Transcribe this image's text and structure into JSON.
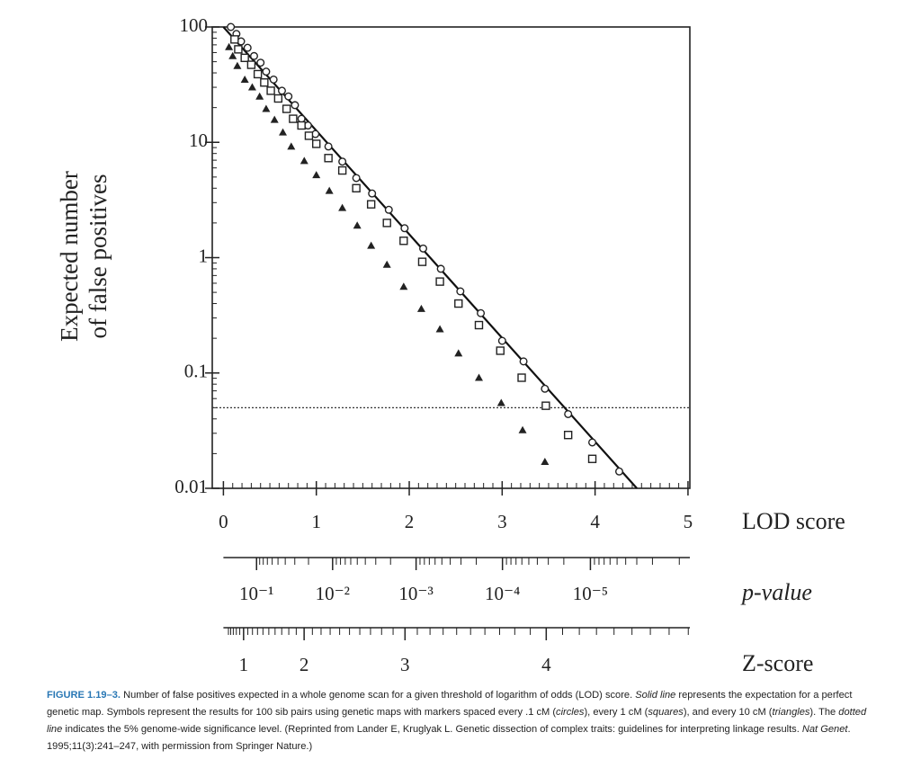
{
  "chart_data": {
    "type": "scatter",
    "xlabel": "LOD score",
    "ylabel": [
      "Expected number",
      "of false positives"
    ],
    "xlim": [
      -0.12,
      5.02
    ],
    "xticks": [
      0,
      1,
      2,
      3,
      4,
      5
    ],
    "xminorticks": [
      0.1,
      0.2,
      0.3,
      0.4,
      0.5,
      0.6,
      0.7,
      0.8,
      0.9,
      1.1,
      1.2,
      1.3,
      1.4,
      1.5,
      1.6,
      1.7,
      1.8,
      1.9,
      2.1,
      2.2,
      2.3,
      2.4,
      2.5,
      2.6,
      2.7,
      2.8,
      2.9,
      3.1,
      3.2,
      3.3,
      3.4,
      3.5,
      3.6,
      3.7,
      3.8,
      3.9,
      4.1,
      4.2,
      4.3,
      4.4,
      4.5,
      4.6,
      4.7,
      4.8,
      4.9
    ],
    "ylim": [
      0.01,
      100
    ],
    "ylog": true,
    "yticks": [
      100,
      10,
      1,
      0.1,
      0.01
    ],
    "yminorticks": [
      0.02,
      0.03,
      0.04,
      0.05,
      0.06,
      0.07,
      0.08,
      0.09,
      0.2,
      0.3,
      0.4,
      0.5,
      0.6,
      0.7,
      0.8,
      0.9,
      2,
      3,
      4,
      5,
      6,
      7,
      8,
      9,
      20,
      30,
      40,
      50,
      60,
      70,
      80,
      90
    ],
    "line": {
      "color": "#111111",
      "x": [
        0,
        4.45
      ],
      "values": [
        100,
        0.01
      ]
    },
    "reference_line": {
      "value": 0.05,
      "color": "#333333"
    },
    "series": [
      {
        "marker": "circle",
        "color": "#222222",
        "x": [
          0.08,
          0.14,
          0.19,
          0.26,
          0.33,
          0.4,
          0.46,
          0.54,
          0.63,
          0.7,
          0.77,
          0.84,
          0.91,
          0.99,
          1.13,
          1.28,
          1.43,
          1.6,
          1.78,
          1.95,
          2.15,
          2.34,
          2.55,
          2.77,
          3.0,
          3.23,
          3.46,
          3.71,
          3.97,
          4.26
        ],
        "values": [
          100,
          87,
          75,
          66,
          56,
          49,
          41,
          35,
          28,
          25,
          21,
          16,
          14,
          11.8,
          9.2,
          6.8,
          4.9,
          3.6,
          2.6,
          1.8,
          1.2,
          0.8,
          0.51,
          0.33,
          0.19,
          0.126,
          0.073,
          0.044,
          0.025,
          0.014
        ]
      },
      {
        "marker": "square",
        "color": "#222222",
        "x": [
          0.12,
          0.16,
          0.23,
          0.3,
          0.37,
          0.44,
          0.51,
          0.59,
          0.68,
          0.75,
          0.84,
          0.92,
          1.0,
          1.13,
          1.28,
          1.43,
          1.59,
          1.76,
          1.94,
          2.14,
          2.33,
          2.53,
          2.75,
          2.98,
          3.21,
          3.47,
          3.71,
          3.97
        ],
        "values": [
          78,
          64,
          54,
          47,
          39,
          33,
          28,
          24,
          19.5,
          16,
          14,
          11.4,
          9.7,
          7.3,
          5.7,
          4.0,
          2.9,
          2.0,
          1.4,
          0.92,
          0.62,
          0.4,
          0.26,
          0.156,
          0.091,
          0.052,
          0.029,
          0.018
        ]
      },
      {
        "marker": "triangle",
        "color": "#222222",
        "x": [
          0.06,
          0.1,
          0.15,
          0.23,
          0.31,
          0.39,
          0.46,
          0.55,
          0.64,
          0.73,
          0.87,
          1.0,
          1.14,
          1.28,
          1.44,
          1.59,
          1.76,
          1.94,
          2.13,
          2.33,
          2.53,
          2.75,
          2.99,
          3.22,
          3.46
        ],
        "values": [
          67,
          56,
          46,
          35,
          30,
          25,
          19.5,
          15.7,
          12.2,
          9.2,
          6.9,
          5.2,
          3.8,
          2.7,
          1.9,
          1.27,
          0.87,
          0.56,
          0.36,
          0.24,
          0.148,
          0.091,
          0.055,
          0.032,
          0.017
        ]
      }
    ],
    "p_axis": {
      "label": "p-value",
      "ticks": [
        {
          "value": 0.1,
          "label": "10⁻¹"
        },
        {
          "value": 0.01,
          "label": "10⁻²"
        },
        {
          "value": 0.001,
          "label": "10⁻³"
        },
        {
          "value": 0.0001,
          "label": "10⁻⁴"
        },
        {
          "value": 1e-05,
          "label": "10⁻⁵"
        }
      ],
      "minorticks": [
        0.09,
        0.08,
        0.07,
        0.06,
        0.05,
        0.04,
        0.03,
        0.02,
        0.009,
        0.008,
        0.007,
        0.006,
        0.005,
        0.004,
        0.003,
        0.002,
        0.0009,
        0.0008,
        0.0007,
        0.0006,
        0.0005,
        0.0004,
        0.0003,
        0.0002,
        9e-05,
        8e-05,
        7e-05,
        6e-05,
        5e-05,
        4e-05,
        3e-05,
        2e-05,
        9e-06,
        8e-06,
        7e-06,
        6e-06,
        5e-06,
        4e-06,
        3e-06,
        2e-06,
        1e-06
      ]
    },
    "z_axis": {
      "label": "Z-score",
      "ticks": [
        1,
        2,
        3,
        4
      ],
      "minorticks": [
        0.5,
        0.6,
        0.7,
        0.8,
        0.9,
        1.1,
        1.2,
        1.3,
        1.4,
        1.5,
        1.6,
        1.7,
        1.8,
        1.9,
        2.1,
        2.2,
        2.3,
        2.4,
        2.5,
        2.6,
        2.7,
        2.8,
        2.9,
        3.1,
        3.2,
        3.3,
        3.4,
        3.5,
        3.6,
        3.7,
        3.8,
        3.9,
        4.1,
        4.2,
        4.3,
        4.4,
        4.5,
        4.6,
        4.7,
        4.8
      ]
    }
  },
  "caption": {
    "label": "FIGURE 1.19–3.",
    "segments": [
      " Number of false positives expected in a whole genome scan for a given threshold of logarithm of odds (LOD) score. ",
      "Solid line",
      " represents the expectation for a perfect genetic map. Symbols represent the results for 100 sib pairs using genetic maps with markers spaced every .1 cM (",
      "circles",
      "), every 1 cM (",
      "squares",
      "), and every 10 cM (",
      "triangles",
      "). The ",
      "dotted line",
      " indicates the 5% genome-wide significance level. (Reprinted from Lander E, Kruglyak L. Genetic dissection of complex traits: guidelines for interpreting linkage results. ",
      "Nat Genet",
      ". 1995;11(3):241–247, with permission from Springer Nature.)"
    ]
  }
}
